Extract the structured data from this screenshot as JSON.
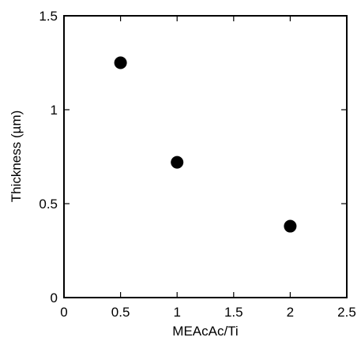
{
  "chart_data": {
    "type": "scatter",
    "title": "",
    "xlabel": "MEAcAc/Ti",
    "ylabel": "Thickness (µm)",
    "xlim": [
      0,
      2.5
    ],
    "ylim": [
      0,
      1.5
    ],
    "xticks": [
      0,
      0.5,
      1,
      1.5,
      2,
      2.5
    ],
    "xtick_labels": [
      "0",
      "0.5",
      "1",
      "1.5",
      "2",
      "2.5"
    ],
    "yticks": [
      0,
      0.5,
      1,
      1.5
    ],
    "ytick_labels": [
      "0",
      "0.5",
      "1",
      "1.5"
    ],
    "grid": false,
    "legend": "none",
    "marker_color": "#000000",
    "series": [
      {
        "x": [
          0.5,
          1,
          2
        ],
        "y": [
          1.25,
          0.72,
          0.38
        ]
      }
    ]
  }
}
